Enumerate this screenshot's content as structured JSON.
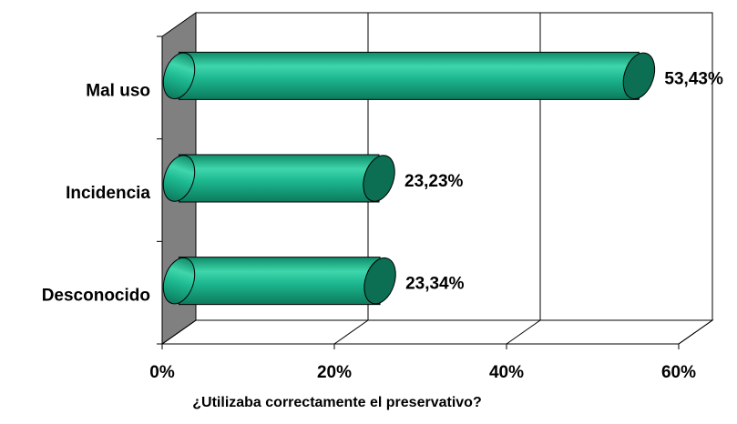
{
  "chart_data": {
    "type": "bar",
    "orientation": "horizontal",
    "style": "3d-cylinder",
    "categories": [
      "Mal uso",
      "Incidencia",
      "Desconocido"
    ],
    "values": [
      53.43,
      23.23,
      23.34
    ],
    "value_labels": [
      "53,43%",
      "23,23%",
      "23,34%"
    ],
    "color": "#1db890",
    "xlabel": "¿Utilizaba correctamente el preservativo?",
    "xlim": [
      0,
      60
    ],
    "xticks": [
      {
        "value": 0,
        "label": "0%"
      },
      {
        "value": 20,
        "label": "20%"
      },
      {
        "value": 40,
        "label": "40%"
      },
      {
        "value": 60,
        "label": "60%"
      }
    ],
    "grid": true
  }
}
